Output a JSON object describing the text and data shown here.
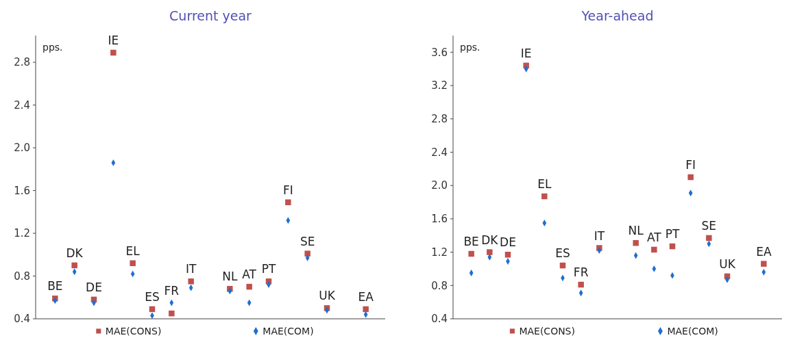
{
  "chart_data": [
    {
      "type": "scatter",
      "title": "Current year",
      "ylabel": "pps.",
      "categories": [
        "BE",
        "DK",
        "DE",
        "IE",
        "EL",
        "ES",
        "FR",
        "IT",
        null,
        "NL",
        "AT",
        "PT",
        "FI",
        "SE",
        "UK",
        null,
        "EA"
      ],
      "ylim": [
        0.4,
        3.05
      ],
      "yticks": [
        0.4,
        0.8,
        1.2,
        1.6,
        {
          "value": 2,
          "label": "2.0"
        },
        2.4,
        2.8
      ],
      "tick_labels": "y",
      "legend": "bottom",
      "grid": false,
      "series": [
        {
          "name": "MAE(CONS)",
          "color": "#c0504d",
          "marker": "square",
          "values": [
            0.59,
            0.9,
            0.58,
            2.89,
            0.92,
            0.49,
            0.45,
            0.75,
            null,
            0.68,
            0.7,
            0.75,
            1.49,
            1.01,
            0.5,
            null,
            0.49
          ]
        },
        {
          "name": "MAE(COM)",
          "color": "#1f6fd0",
          "marker": "diamond",
          "values": [
            0.57,
            0.84,
            0.55,
            1.86,
            0.82,
            0.43,
            0.55,
            0.69,
            null,
            0.66,
            0.55,
            0.72,
            1.32,
            0.97,
            0.48,
            null,
            0.44
          ]
        }
      ]
    },
    {
      "type": "scatter",
      "title": "Year-ahead",
      "ylabel": "pps.",
      "categories": [
        "BE",
        "DK",
        "DE",
        "IE",
        "EL",
        "ES",
        "FR",
        "IT",
        null,
        "NL",
        "AT",
        "PT",
        "FI",
        "SE",
        "UK",
        null,
        "EA"
      ],
      "ylim": [
        0.4,
        3.8
      ],
      "yticks": [
        0.4,
        0.8,
        1.2,
        1.6,
        {
          "value": 2,
          "label": "2.0"
        },
        2.4,
        2.8,
        3.2,
        3.6
      ],
      "tick_labels": "y",
      "legend": "bottom",
      "grid": false,
      "series": [
        {
          "name": "MAE(CONS)",
          "color": "#c0504d",
          "marker": "square",
          "values": [
            1.18,
            1.2,
            1.17,
            3.44,
            1.87,
            1.04,
            0.81,
            1.25,
            null,
            1.31,
            1.23,
            1.27,
            2.1,
            1.37,
            0.91,
            null,
            1.06
          ]
        },
        {
          "name": "MAE(COM)",
          "color": "#1f6fd0",
          "marker": "diamond",
          "values": [
            0.95,
            1.14,
            1.09,
            3.4,
            1.55,
            0.89,
            0.71,
            1.22,
            null,
            1.16,
            1.0,
            0.92,
            1.91,
            1.3,
            0.87,
            null,
            0.96
          ]
        }
      ]
    }
  ]
}
